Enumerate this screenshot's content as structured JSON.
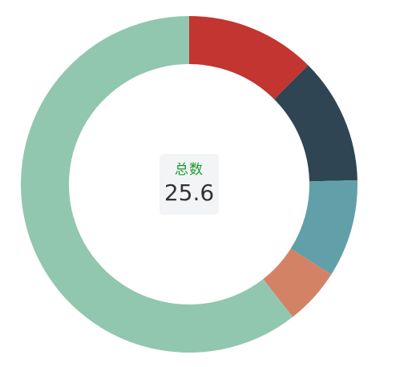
{
  "chart_data": {
    "type": "pie",
    "donut": true,
    "title": "",
    "center_label": "总数",
    "center_value": "25.6",
    "slices": [
      {
        "value": 3.2,
        "color": "#c23531"
      },
      {
        "value": 3.1,
        "color": "#2f4554"
      },
      {
        "value": 2.4,
        "color": "#61a0a8"
      },
      {
        "value": 1.4,
        "color": "#d48265"
      },
      {
        "value": 15.5,
        "color": "#91c7ae"
      }
    ]
  },
  "colors": {
    "center_label": "#1a9a2a",
    "center_value": "#333333"
  }
}
